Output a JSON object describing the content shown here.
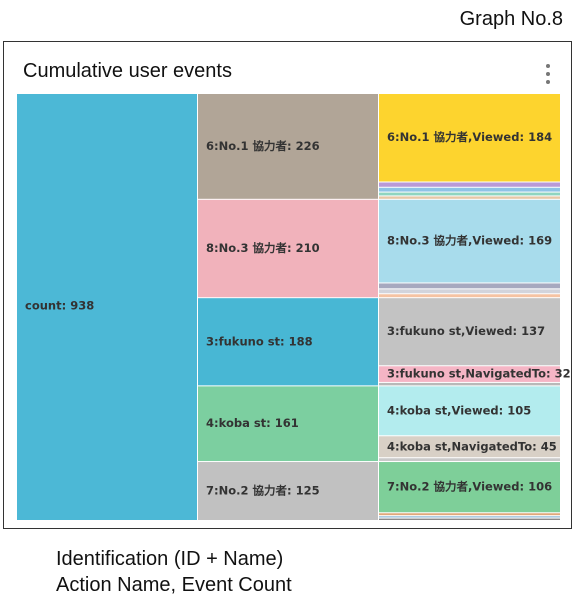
{
  "graph_label": "Graph No.8",
  "title": "Cumulative user events",
  "menu_icon": "more-vertical-icon",
  "caption": [
    "Identification (ID + Name)",
    "Action Name, Event Count"
  ],
  "chart_data": {
    "type": "treemap",
    "title": "Cumulative user events",
    "root": {
      "label": "count: 938",
      "value": 938,
      "color": "#4cb8d6"
    },
    "groups": [
      {
        "label": "6:No.1 協力者: 226",
        "name": "6:No.1 協力者",
        "value": 226,
        "color": "#b1a597",
        "children": [
          {
            "label": "6:No.1 協力者,Viewed: 184",
            "value": 184,
            "color": "#fdd42e"
          },
          {
            "label": "",
            "value": 9,
            "color": "#b99ad8"
          },
          {
            "label": "",
            "value": 8,
            "color": "#8ec3e6"
          },
          {
            "label": "",
            "value": 6,
            "color": "#8fd5c0"
          },
          {
            "label": "",
            "value": 5,
            "color": "#e6c7a6"
          }
        ]
      },
      {
        "label": "8:No.3 協力者: 210",
        "name": "8:No.3 協力者",
        "value": 210,
        "color": "#f1b2bb",
        "children": [
          {
            "label": "8:No.3 協力者,Viewed: 169",
            "value": 169,
            "color": "#a8dcec"
          },
          {
            "label": "",
            "value": 10,
            "color": "#a7a9bf"
          },
          {
            "label": "",
            "value": 8,
            "color": "#d2d4dc"
          },
          {
            "label": "",
            "value": 6,
            "color": "#f5c3a3"
          }
        ]
      },
      {
        "label": "3:fukuno st: 188",
        "name": "3:fukuno st",
        "value": 188,
        "color": "#48b7d4",
        "children": [
          {
            "label": "3:fukuno st,Viewed: 137",
            "value": 137,
            "color": "#c3c3c3"
          },
          {
            "label": "3:fukuno st,NavigatedTo: 32",
            "value": 32,
            "color": "#f5b5c5"
          },
          {
            "label": "",
            "value": 5,
            "color": "#b9b9b9"
          }
        ]
      },
      {
        "label": "4:koba st: 161",
        "name": "4:koba st",
        "value": 161,
        "color": "#7ccfa0",
        "children": [
          {
            "label": "4:koba st,Viewed: 105",
            "value": 105,
            "color": "#b3ecee"
          },
          {
            "label": "4:koba st,NavigatedTo: 45",
            "value": 45,
            "color": "#d8d0c6"
          },
          {
            "label": "",
            "value": 6,
            "color": "#c9c9c9"
          }
        ]
      },
      {
        "label": "7:No.2 協力者: 125",
        "name": "7:No.2 協力者",
        "value": 125,
        "color": "#c1c1c1",
        "children": [
          {
            "label": "7:No.2 協力者,Viewed: 106",
            "value": 106,
            "color": "#7ecf99"
          },
          {
            "label": "",
            "value": 4,
            "color": "#e0a87a"
          },
          {
            "label": "",
            "value": 3,
            "color": "#9ec2dc"
          },
          {
            "label": "",
            "value": 3,
            "color": "#8a8a8a"
          }
        ]
      }
    ]
  }
}
